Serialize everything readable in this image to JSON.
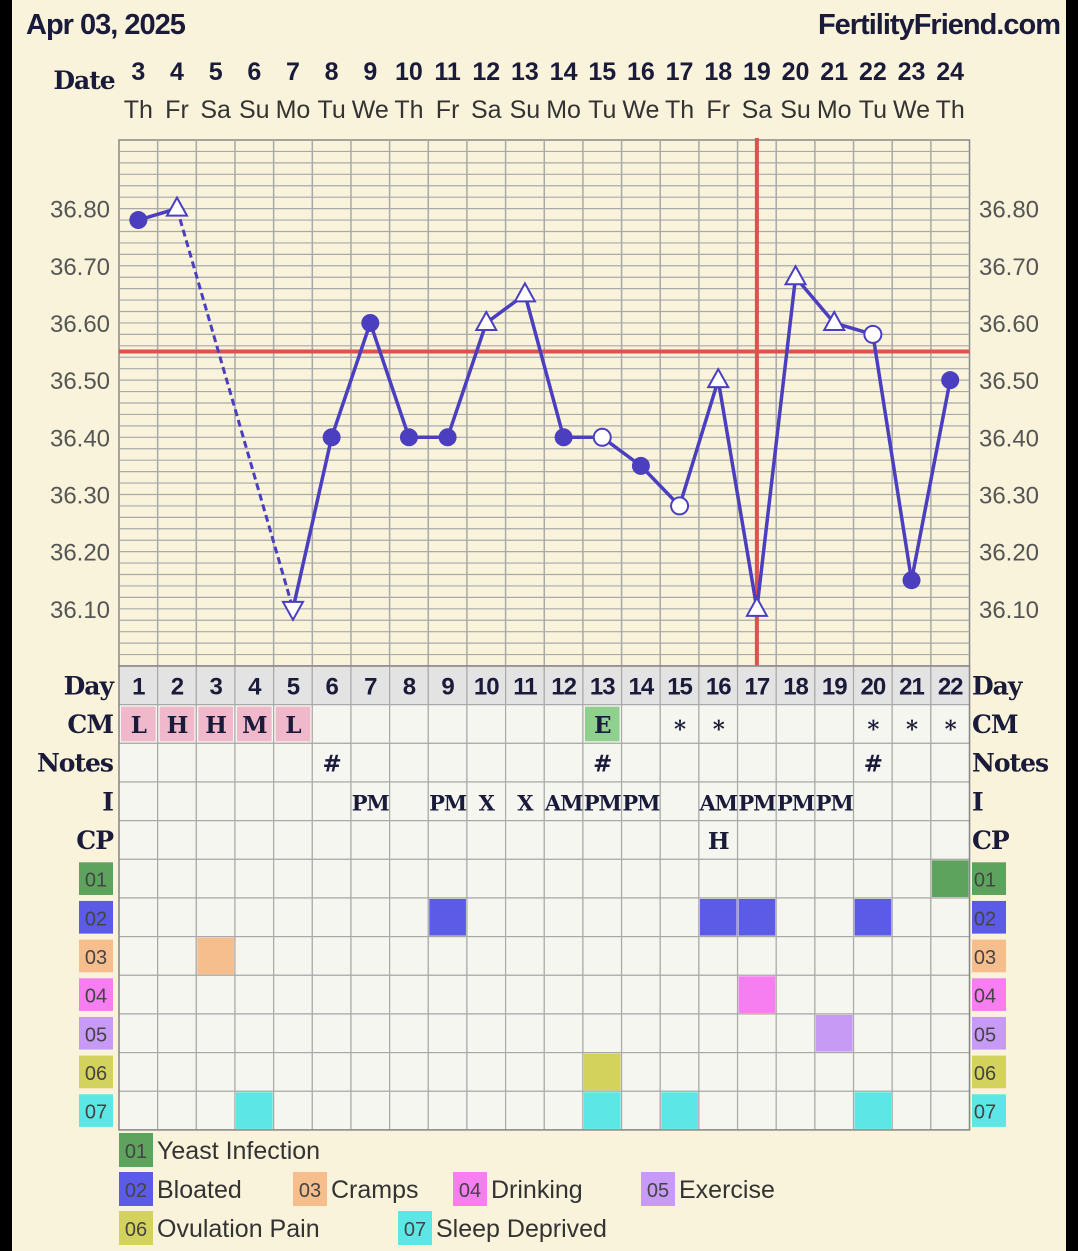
{
  "header": {
    "date_text": "Apr 03, 2025",
    "brand_text": "FertilityFriend.com"
  },
  "row_labels": {
    "date": "Date",
    "day": "Day",
    "cm": "CM",
    "notes": "Notes",
    "intercourse": "I",
    "cp": "CP"
  },
  "colors": {
    "background": "#f8f3da",
    "grid": "#a9a9a9",
    "line": "#4b3fbf",
    "coverline": "#d9534f",
    "ovulation_line": "#d9534f",
    "cm_fill": "#f0b8cb",
    "cm_egg_fill": "#8fd08f",
    "cell_fill": "#f6f6f0",
    "day_fill": "#e3e3e3",
    "text_dark": "#1a1a3a",
    "text_gray": "#555555",
    "cat01": "#5da25d",
    "cat02": "#5b5be8",
    "cat03": "#f7be8d",
    "cat04": "#f77ef0",
    "cat05": "#c79af6",
    "cat06": "#d3d25d",
    "cat07": "#5ce6e6"
  },
  "chart_data": {
    "type": "line",
    "title": "Apr 03, 2025",
    "dates": [
      "3",
      "4",
      "5",
      "6",
      "7",
      "8",
      "9",
      "10",
      "11",
      "12",
      "13",
      "14",
      "15",
      "16",
      "17",
      "18",
      "19",
      "20",
      "21",
      "22",
      "23",
      "24"
    ],
    "weekdays": [
      "Th",
      "Fr",
      "Sa",
      "Su",
      "Mo",
      "Tu",
      "We",
      "Th",
      "Fr",
      "Sa",
      "Su",
      "Mo",
      "Tu",
      "We",
      "Th",
      "Fr",
      "Sa",
      "Su",
      "Mo",
      "Tu",
      "We",
      "Th"
    ],
    "cycle_days": [
      "1",
      "2",
      "3",
      "4",
      "5",
      "6",
      "7",
      "8",
      "9",
      "10",
      "11",
      "12",
      "13",
      "14",
      "15",
      "16",
      "17",
      "18",
      "19",
      "20",
      "21",
      "22"
    ],
    "temps": [
      36.78,
      36.8,
      null,
      null,
      36.1,
      36.4,
      36.6,
      36.4,
      36.4,
      36.6,
      36.65,
      36.4,
      36.4,
      36.35,
      36.28,
      36.5,
      36.1,
      36.68,
      36.6,
      36.58,
      36.15,
      36.5
    ],
    "markers": [
      "dot",
      "triangle",
      null,
      null,
      "triangle-down",
      "dot",
      "dot",
      "dot",
      "dot",
      "triangle",
      "triangle",
      "dot",
      "circle-open",
      "dot",
      "circle-open",
      "triangle",
      "triangle",
      "triangle",
      "triangle",
      "circle-open",
      "dot",
      "dot"
    ],
    "dashed_segments": [
      [
        1,
        4
      ]
    ],
    "coverline": 36.55,
    "ovulation_day_index": 16,
    "ylim": [
      36.0,
      36.92
    ],
    "yticks": [
      "36.80",
      "36.70",
      "36.60",
      "36.50",
      "36.40",
      "36.30",
      "36.20",
      "36.10"
    ],
    "ytick_values": [
      36.8,
      36.7,
      36.6,
      36.5,
      36.4,
      36.3,
      36.2,
      36.1
    ],
    "cm": [
      "L",
      "H",
      "H",
      "M",
      "L",
      "",
      "",
      "",
      "",
      "",
      "",
      "",
      "E",
      "",
      "*",
      "*",
      "",
      "",
      "",
      "*",
      "*",
      "*"
    ],
    "notes": [
      "",
      "",
      "",
      "",
      "",
      "#",
      "",
      "",
      "",
      "",
      "",
      "",
      "#",
      "",
      "",
      "",
      "",
      "",
      "",
      "#",
      "",
      ""
    ],
    "intercourse": [
      "",
      "",
      "",
      "",
      "",
      "",
      "PM",
      "",
      "PM",
      "X",
      "X",
      "AM",
      "PM",
      "PM",
      "",
      "AM",
      "PM",
      "PM",
      "PM",
      "",
      "",
      ""
    ],
    "cp": [
      "",
      "",
      "",
      "",
      "",
      "",
      "",
      "",
      "",
      "",
      "",
      "",
      "",
      "",
      "",
      "H",
      "",
      "",
      "",
      "",
      "",
      ""
    ],
    "categories": [
      {
        "code": "01",
        "label": "Yeast Infection",
        "color": "#5da25d",
        "days": [
          22
        ]
      },
      {
        "code": "02",
        "label": "Bloated",
        "color": "#5b5be8",
        "days": [
          9,
          16,
          17,
          20
        ]
      },
      {
        "code": "03",
        "label": "Cramps",
        "color": "#f7be8d",
        "days": [
          3
        ]
      },
      {
        "code": "04",
        "label": "Drinking",
        "color": "#f77ef0",
        "days": [
          17
        ]
      },
      {
        "code": "05",
        "label": "Exercise",
        "color": "#c79af6",
        "days": [
          19
        ]
      },
      {
        "code": "06",
        "label": "Ovulation Pain",
        "color": "#d3d25d",
        "days": [
          13
        ]
      },
      {
        "code": "07",
        "label": "Sleep Deprived",
        "color": "#5ce6e6",
        "days": [
          4,
          13,
          15,
          20
        ]
      }
    ]
  }
}
